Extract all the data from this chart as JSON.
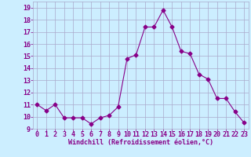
{
  "x": [
    0,
    1,
    2,
    3,
    4,
    5,
    6,
    7,
    8,
    9,
    10,
    11,
    12,
    13,
    14,
    15,
    16,
    17,
    18,
    19,
    20,
    21,
    22,
    23
  ],
  "y": [
    11.0,
    10.5,
    11.0,
    9.9,
    9.9,
    9.9,
    9.4,
    9.9,
    10.1,
    10.8,
    14.8,
    15.1,
    17.4,
    17.4,
    18.8,
    17.4,
    15.4,
    15.2,
    13.5,
    13.1,
    11.5,
    11.5,
    10.4,
    9.5
  ],
  "line_color": "#880088",
  "marker": "D",
  "marker_size": 2.5,
  "bg_color": "#cceeff",
  "grid_color": "#aaaacc",
  "xlabel": "Windchill (Refroidissement éolien,°C)",
  "xlabel_color": "#880088",
  "xlabel_fontsize": 6.0,
  "tick_color": "#880088",
  "tick_fontsize": 6.0,
  "xlim": [
    -0.5,
    23.5
  ],
  "ylim": [
    9.0,
    19.5
  ],
  "yticks": [
    9,
    10,
    11,
    12,
    13,
    14,
    15,
    16,
    17,
    18,
    19
  ],
  "xticks": [
    0,
    1,
    2,
    3,
    4,
    5,
    6,
    7,
    8,
    9,
    10,
    11,
    12,
    13,
    14,
    15,
    16,
    17,
    18,
    19,
    20,
    21,
    22,
    23
  ]
}
